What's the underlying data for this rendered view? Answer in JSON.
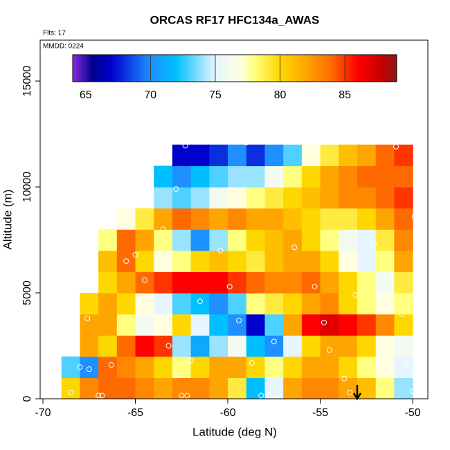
{
  "chart_data": {
    "type": "heatmap",
    "title": "ORCAS RF17 HFC134a_AWAS",
    "annotations": [
      "Flts: 17",
      "MMDD: 0224"
    ],
    "x_label": "Latitude (deg N)",
    "y_label": "Altitude (m)",
    "xlim": [
      -70.15,
      -49.18
    ],
    "ylim": [
      0,
      16930
    ],
    "xticks": [
      -70,
      -65,
      -60,
      -55,
      -50
    ],
    "yticks": [
      0,
      5000,
      10000,
      15000
    ],
    "x": [
      -68.5,
      -67.5,
      -66.5,
      -65.5,
      -64.5,
      -63.5,
      -62.5,
      -61.5,
      -60.5,
      -59.5,
      -58.5,
      -57.5,
      -56.5,
      -55.5,
      -54.5,
      -53.5,
      -52.5,
      -51.5,
      -50.5
    ],
    "y": [
      500,
      1500,
      2500,
      3500,
      4500,
      5500,
      6500,
      7500,
      8500,
      9500,
      10500,
      11500
    ],
    "z": [
      [
        80,
        83,
        84,
        84,
        83,
        82,
        83,
        83,
        82,
        79,
        72,
        75,
        82,
        83,
        83,
        82,
        81,
        78,
        74
      ],
      [
        73,
        70,
        84,
        83,
        82,
        80,
        78,
        80,
        82,
        82,
        80,
        78,
        80,
        82,
        82,
        80,
        78,
        77,
        75
      ],
      [
        null,
        82,
        80,
        84,
        86,
        85,
        74,
        71,
        74,
        76,
        72,
        70,
        75,
        80,
        82,
        82,
        80,
        77,
        76
      ],
      [
        null,
        82,
        82,
        78,
        76,
        77,
        80,
        75,
        72,
        70,
        67,
        73,
        82,
        86,
        87,
        86,
        85,
        83,
        80
      ],
      [
        null,
        80,
        82,
        80,
        77,
        75,
        73,
        72,
        70,
        73,
        78,
        79,
        80,
        82,
        83,
        80,
        78,
        77,
        78
      ],
      [
        null,
        null,
        80,
        82,
        84,
        85,
        86,
        86,
        86,
        85,
        84,
        83,
        83,
        84,
        82,
        80,
        78,
        76,
        79
      ],
      [
        null,
        null,
        81,
        84,
        80,
        77,
        78,
        80,
        81,
        80,
        79,
        81,
        82,
        82,
        80,
        77,
        75,
        78,
        82
      ],
      [
        null,
        null,
        78,
        84,
        82,
        78,
        74,
        70,
        74,
        78,
        80,
        81,
        82,
        80,
        78,
        76,
        75,
        79,
        83
      ],
      [
        null,
        null,
        null,
        77,
        79,
        82,
        84,
        83,
        82,
        83,
        82,
        82,
        81,
        80,
        79,
        79,
        80,
        82,
        84
      ],
      [
        null,
        null,
        null,
        null,
        null,
        74,
        73,
        74,
        76,
        77,
        78,
        79,
        80,
        81,
        82,
        83,
        83,
        84,
        85
      ],
      [
        null,
        null,
        null,
        null,
        null,
        72,
        70,
        72,
        73,
        74,
        74,
        76,
        78,
        80,
        82,
        83,
        84,
        84,
        84
      ],
      [
        null,
        null,
        null,
        null,
        null,
        null,
        67,
        67,
        68,
        70,
        68,
        70,
        73,
        77,
        79,
        81,
        82,
        84,
        85
      ]
    ],
    "colorbar_lim": [
      64,
      89
    ],
    "colorbar_ticks": [
      65,
      70,
      75,
      80,
      85
    ],
    "colorscale": [
      [
        64,
        "#8a2be2"
      ],
      [
        65.5,
        "#00008b"
      ],
      [
        67,
        "#0000cd"
      ],
      [
        70,
        "#1e90ff"
      ],
      [
        72,
        "#00bfff"
      ],
      [
        75,
        "#e6f5ff"
      ],
      [
        77,
        "#ffffe0"
      ],
      [
        78,
        "#ffff80"
      ],
      [
        80,
        "#ffd700"
      ],
      [
        82,
        "#ffa500"
      ],
      [
        84,
        "#ff6a00"
      ],
      [
        86,
        "#ff0000"
      ],
      [
        88,
        "#c00000"
      ],
      [
        89,
        "#8b1a1a"
      ]
    ],
    "points": {
      "x": [
        -68.5,
        -68,
        -67.5,
        -67,
        -66.8,
        -66.3,
        -67.6,
        -65.5,
        -65,
        -64.5,
        -63.5,
        -63.2,
        -62.8,
        -62.5,
        -62.2,
        -62,
        -61.5,
        -62.3,
        -62.8,
        -60.4,
        -59.9,
        -59.4,
        -59,
        -58.7,
        -58.2,
        -57.8,
        -57.5,
        -56.4,
        -55.9,
        -55.3,
        -54.8,
        -54.5,
        -53.7,
        -53.4,
        -53.1,
        -52.1,
        -51.3,
        -50.9,
        -50.6,
        -50.3,
        -49.9,
        -50
      ],
      "y": [
        300,
        1500,
        1400,
        150,
        150,
        1600,
        3800,
        6500,
        6800,
        5600,
        8000,
        2500,
        1100,
        150,
        150,
        1800,
        4600,
        11950,
        9900,
        7000,
        5300,
        3700,
        12100,
        1700,
        150,
        150,
        2700,
        7150,
        12200,
        5300,
        3600,
        2300,
        950,
        300,
        4900,
        7300,
        5700,
        11900,
        4000,
        1600,
        8600,
        350
      ]
    },
    "point_color": "#ffffff",
    "arrow_x": -53
  }
}
